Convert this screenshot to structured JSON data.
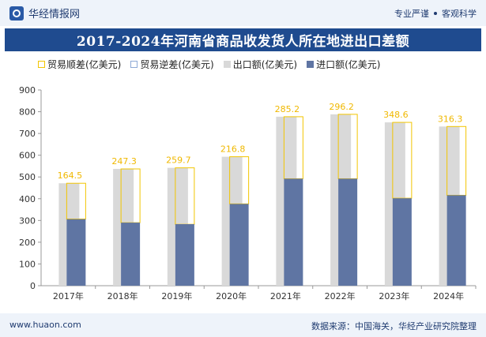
{
  "header": {
    "brand": "华经情报网",
    "tagline_left": "专业严谨",
    "tagline_right": "客观科学"
  },
  "chart_data": {
    "type": "bar",
    "title": "2017-2024年河南省商品收发货人所在地进出口差额",
    "categories": [
      "2017年",
      "2018年",
      "2019年",
      "2020年",
      "2021年",
      "2022年",
      "2023年",
      "2024年"
    ],
    "series": [
      {
        "name": "贸易顺差(亿美元)",
        "values": [
          164.5,
          247.3,
          259.7,
          216.8,
          285.2,
          296.2,
          348.6,
          316.3
        ],
        "color": "#f2c500"
      },
      {
        "name": "贸易逆差(亿美元)",
        "values": [
          0,
          0,
          0,
          0,
          0,
          0,
          0,
          0
        ],
        "color": "#8ea9d6"
      },
      {
        "name": "出口额(亿美元)",
        "values": [
          471,
          537,
          542,
          593,
          777,
          788,
          751,
          732
        ],
        "color": "#d9d9d9"
      },
      {
        "name": "进口额(亿美元)",
        "values": [
          306,
          290,
          283,
          376,
          492,
          492,
          402,
          416
        ],
        "color": "#5f75a3"
      }
    ],
    "data_labels": [
      "164.5",
      "247.3",
      "259.7",
      "216.8",
      "285.2",
      "296.2",
      "348.6",
      "316.3"
    ],
    "yticks": [
      "0",
      "100",
      "200",
      "300",
      "400",
      "500",
      "600",
      "700",
      "800",
      "900"
    ],
    "ylim": [
      0,
      900
    ],
    "grid": false,
    "legend": "top-left"
  },
  "footer": {
    "site": "www.huaon.com",
    "source": "数据来源：中国海关，华经产业研究院整理"
  }
}
